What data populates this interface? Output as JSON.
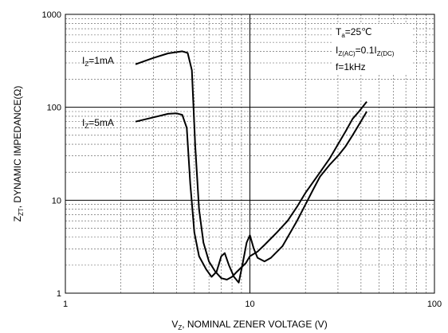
{
  "chart_data": {
    "type": "line",
    "title": "",
    "x_axis": {
      "label_main": "V",
      "label_sub": "Z",
      "label_rest": ", NOMINAL ZENER VOLTAGE (V)",
      "scale": "log",
      "range": [
        1,
        100
      ],
      "ticks": [
        "1",
        "10",
        "100"
      ]
    },
    "y_axis": {
      "label_main": "Z",
      "label_sub": "ZT",
      "label_rest": ", DYNAMIC IMPEDANCE(Ω)",
      "scale": "log",
      "range": [
        1,
        1000
      ],
      "ticks": [
        "1",
        "10",
        "100",
        "1000"
      ]
    },
    "grid": true,
    "series": [
      {
        "name": "I_Z=1mA",
        "label_main": "I",
        "label_sub": "Z",
        "label_rest": "=1mA",
        "color": "#000000",
        "points": [
          [
            2.4,
            290
          ],
          [
            3.0,
            340
          ],
          [
            3.6,
            380
          ],
          [
            4.3,
            400
          ],
          [
            4.6,
            385
          ],
          [
            4.85,
            250
          ],
          [
            5.05,
            40
          ],
          [
            5.3,
            8
          ],
          [
            5.6,
            3.5
          ],
          [
            6.0,
            2.2
          ],
          [
            6.5,
            1.7
          ],
          [
            7.0,
            1.45
          ],
          [
            7.5,
            1.4
          ],
          [
            8.0,
            1.5
          ],
          [
            8.5,
            1.7
          ],
          [
            9.0,
            1.9
          ],
          [
            9.5,
            2.1
          ],
          [
            10.0,
            2.5
          ],
          [
            11.0,
            2.8
          ],
          [
            12.0,
            3.3
          ],
          [
            14.0,
            4.5
          ],
          [
            16.0,
            6.0
          ],
          [
            18.0,
            8.5
          ],
          [
            20.0,
            12
          ],
          [
            24.0,
            20
          ],
          [
            27.0,
            28
          ],
          [
            30.0,
            40
          ],
          [
            33.0,
            55
          ],
          [
            36.0,
            75
          ],
          [
            39.0,
            90
          ],
          [
            43.0,
            115
          ]
        ]
      },
      {
        "name": "I_Z=5mA",
        "label_main": "I",
        "label_sub": "Z",
        "label_rest": "=5mA",
        "color": "#000000",
        "points": [
          [
            2.4,
            70
          ],
          [
            3.0,
            78
          ],
          [
            3.6,
            85
          ],
          [
            4.0,
            86
          ],
          [
            4.3,
            83
          ],
          [
            4.55,
            60
          ],
          [
            4.75,
            15
          ],
          [
            5.0,
            4.5
          ],
          [
            5.3,
            2.5
          ],
          [
            5.8,
            1.8
          ],
          [
            6.2,
            1.5
          ],
          [
            6.6,
            1.7
          ],
          [
            7.0,
            2.5
          ],
          [
            7.3,
            2.7
          ],
          [
            7.7,
            2.0
          ],
          [
            8.2,
            1.5
          ],
          [
            8.7,
            1.3
          ],
          [
            9.1,
            2.0
          ],
          [
            9.6,
            3.5
          ],
          [
            10.0,
            4.2
          ],
          [
            10.5,
            3.0
          ],
          [
            11.0,
            2.4
          ],
          [
            12.0,
            2.2
          ],
          [
            13.0,
            2.4
          ],
          [
            15.0,
            3.2
          ],
          [
            18.0,
            6.0
          ],
          [
            20.0,
            9.0
          ],
          [
            22.0,
            13.0
          ],
          [
            24.0,
            18.0
          ],
          [
            27.0,
            24
          ],
          [
            30.0,
            30
          ],
          [
            33.0,
            38
          ],
          [
            36.0,
            50
          ],
          [
            39.0,
            65
          ],
          [
            43.0,
            90
          ]
        ]
      }
    ],
    "annotations": {
      "ta_main": "T",
      "ta_sub": "a",
      "ta_rest": "=25℃",
      "iz_main": "I",
      "iz_sub": "Z(AC)",
      "iz_mid": "=0.1I",
      "iz_sub2": "Z(DC)",
      "freq": "f=1kHz"
    }
  }
}
